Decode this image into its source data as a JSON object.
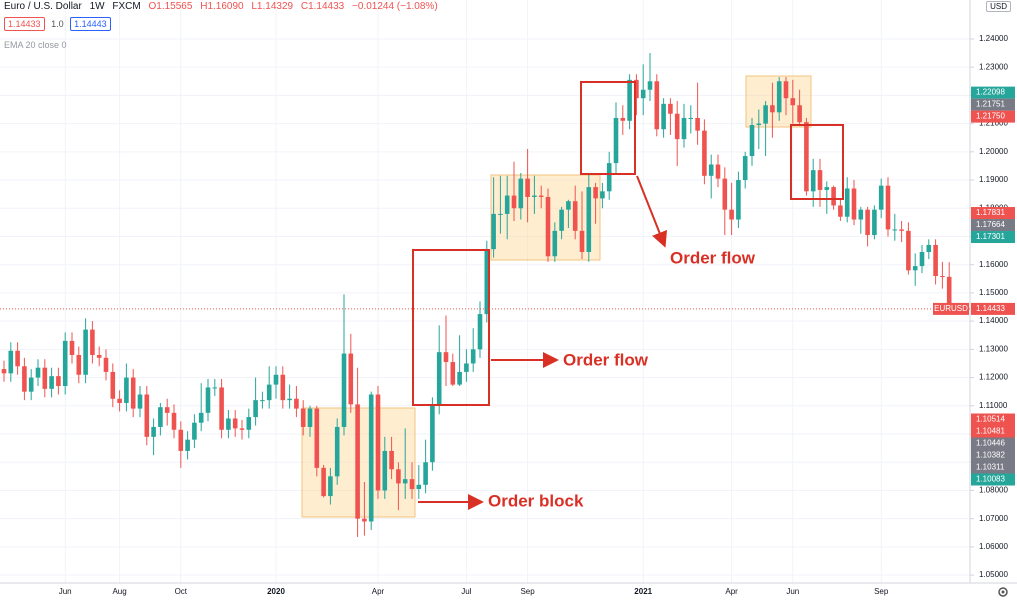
{
  "header": {
    "symbol": "Euro / U.S. Dollar",
    "interval": "1W",
    "exchange": "FXCM",
    "open": "O1.15565",
    "high": "H1.16090",
    "low": "L1.14329",
    "close": "C1.14433",
    "change": "−0.01244 (−1.08%)",
    "sell": "1.14433",
    "spread": "1.0",
    "buy": "1.14443",
    "indicator": "EMA 20 close 0",
    "currency": "USD"
  },
  "annotations": [
    "Order block",
    "Order flow",
    "Order flow"
  ],
  "chart_data": {
    "type": "candlestick",
    "up_color": "#26a69a",
    "down_color": "#ef5350",
    "grid": true,
    "ylim": [
      1.0472,
      1.2538
    ],
    "yticks": [
      {
        "value": 1.05,
        "label": "1.05000"
      },
      {
        "value": 1.06,
        "label": "1.06000"
      },
      {
        "value": 1.07,
        "label": "1.07000"
      },
      {
        "value": 1.08,
        "label": "1.08000"
      },
      {
        "value": 1.09,
        "label": "1.09000"
      },
      {
        "value": 1.1,
        "label": "1.10000"
      },
      {
        "value": 1.11,
        "label": "1.11000"
      },
      {
        "value": 1.12,
        "label": "1.12000"
      },
      {
        "value": 1.13,
        "label": "1.13000"
      },
      {
        "value": 1.14,
        "label": "1.14000"
      },
      {
        "value": 1.15,
        "label": "1.15000"
      },
      {
        "value": 1.16,
        "label": "1.16000"
      },
      {
        "value": 1.17,
        "label": "1.17000"
      },
      {
        "value": 1.18,
        "label": "1.18000"
      },
      {
        "value": 1.19,
        "label": "1.19000"
      },
      {
        "value": 1.2,
        "label": "1.20000"
      },
      {
        "value": 1.21,
        "label": "1.21000"
      },
      {
        "value": 1.22,
        "label": "1.22000"
      },
      {
        "value": 1.23,
        "label": "1.23000"
      },
      {
        "value": 1.24,
        "label": "1.24000"
      }
    ],
    "categories": [
      null,
      null,
      null,
      null,
      null,
      null,
      null,
      null,
      null,
      "Jun",
      null,
      null,
      null,
      null,
      null,
      null,
      null,
      "Aug",
      null,
      null,
      null,
      null,
      null,
      null,
      null,
      null,
      "Oct",
      null,
      null,
      null,
      null,
      null,
      null,
      null,
      null,
      null,
      null,
      null,
      null,
      null,
      "2020",
      null,
      null,
      null,
      null,
      null,
      null,
      null,
      null,
      null,
      null,
      null,
      null,
      null,
      null,
      "Apr",
      null,
      null,
      null,
      null,
      null,
      null,
      null,
      null,
      null,
      null,
      null,
      null,
      "Jul",
      null,
      null,
      null,
      null,
      null,
      null,
      null,
      null,
      "Sep",
      null,
      null,
      null,
      null,
      null,
      null,
      null,
      null,
      null,
      null,
      null,
      null,
      null,
      null,
      null,
      null,
      "2021",
      null,
      null,
      null,
      null,
      null,
      null,
      null,
      null,
      null,
      null,
      null,
      null,
      "Apr",
      null,
      null,
      null,
      null,
      null,
      null,
      null,
      null,
      "Jun",
      null,
      null,
      null,
      null,
      null,
      null,
      null,
      null,
      null,
      null,
      null,
      null,
      "Sep",
      null,
      null,
      null,
      null,
      null,
      null,
      null,
      null,
      null,
      null
    ],
    "open": [
      1.123,
      1.1215,
      1.1295,
      1.124,
      1.115,
      1.12,
      1.1235,
      1.116,
      1.1205,
      1.117,
      1.133,
      1.128,
      1.121,
      1.137,
      1.128,
      1.127,
      1.122,
      1.1125,
      1.111,
      1.12,
      1.109,
      1.114,
      1.099,
      1.1025,
      1.1095,
      1.1075,
      1.1015,
      1.094,
      1.098,
      1.104,
      1.1075,
      1.1165,
      1.1165,
      1.1015,
      1.1055,
      1.102,
      1.1015,
      1.106,
      1.112,
      1.112,
      1.1175,
      1.121,
      1.112,
      1.1125,
      1.109,
      1.1025,
      1.109,
      1.088,
      1.078,
      1.085,
      1.1025,
      1.1285,
      1.1105,
      1.07,
      1.069,
      1.114,
      1.08,
      1.094,
      1.0875,
      1.0825,
      1.084,
      1.0805,
      1.082,
      1.09,
      1.11,
      1.129,
      1.1255,
      1.1175,
      1.122,
      1.125,
      1.13,
      1.1425,
      1.1655,
      1.178,
      1.178,
      1.1845,
      1.18,
      1.1905,
      1.184,
      1.1845,
      1.184,
      1.163,
      1.172,
      1.1795,
      1.1825,
      1.172,
      1.1645,
      1.1875,
      1.1835,
      1.186,
      1.196,
      1.212,
      1.211,
      1.2255,
      1.219,
      1.222,
      1.225,
      1.208,
      1.217,
      1.2135,
      1.2045,
      1.212,
      1.212,
      1.2075,
      1.1915,
      1.1955,
      1.1905,
      1.1795,
      1.176,
      1.19,
      1.1985,
      1.2095,
      1.21,
      1.2165,
      1.214,
      1.225,
      1.219,
      1.2165,
      1.2105,
      1.186,
      1.1935,
      1.1865,
      1.1875,
      1.181,
      1.177,
      1.187,
      1.176,
      1.1795,
      1.1705,
      1.1795,
      1.188,
      1.1725,
      1.1725,
      1.172,
      1.158,
      1.1595,
      1.1645,
      1.167,
      1.156,
      1.1557
    ],
    "high": [
      1.126,
      1.1325,
      1.1325,
      1.127,
      1.123,
      1.1265,
      1.1265,
      1.1235,
      1.1235,
      1.136,
      1.136,
      1.131,
      1.141,
      1.14,
      1.131,
      1.13,
      1.125,
      1.1155,
      1.125,
      1.123,
      1.117,
      1.117,
      1.1055,
      1.111,
      1.1125,
      1.1105,
      1.1045,
      1.101,
      1.107,
      1.118,
      1.1195,
      1.1195,
      1.1195,
      1.1085,
      1.1085,
      1.105,
      1.109,
      1.12,
      1.115,
      1.124,
      1.124,
      1.124,
      1.1175,
      1.117,
      1.112,
      1.11,
      1.11,
      1.089,
      1.088,
      1.1055,
      1.1495,
      1.1355,
      1.1235,
      1.083,
      1.115,
      1.117,
      1.099,
      1.099,
      1.09,
      1.102,
      1.09,
      1.089,
      1.098,
      1.113,
      1.1385,
      1.142,
      1.1285,
      1.135,
      1.13,
      1.1375,
      1.147,
      1.1685,
      1.191,
      1.1915,
      1.1915,
      1.1965,
      1.1925,
      1.201,
      1.1915,
      1.188,
      1.187,
      1.175,
      1.1805,
      1.183,
      1.188,
      1.186,
      1.192,
      1.189,
      1.189,
      1.2,
      1.2175,
      1.2165,
      1.2275,
      1.2275,
      1.231,
      1.235,
      1.2275,
      1.219,
      1.219,
      1.218,
      1.217,
      1.2165,
      1.2245,
      1.2115,
      1.199,
      1.199,
      1.1945,
      1.189,
      1.193,
      1.2,
      1.212,
      1.215,
      1.218,
      1.2245,
      1.2265,
      1.2265,
      1.2255,
      1.222,
      1.212,
      1.1975,
      1.1975,
      1.1895,
      1.188,
      1.183,
      1.191,
      1.19,
      1.1805,
      1.1805,
      1.181,
      1.1905,
      1.191,
      1.178,
      1.1755,
      1.175,
      1.164,
      1.167,
      1.169,
      1.169,
      1.161,
      1.1609
    ],
    "low": [
      1.1185,
      1.1185,
      1.121,
      1.112,
      1.112,
      1.117,
      1.113,
      1.113,
      1.114,
      1.114,
      1.125,
      1.118,
      1.118,
      1.125,
      1.124,
      1.119,
      1.1095,
      1.108,
      1.108,
      1.106,
      1.106,
      1.096,
      1.0925,
      1.0995,
      1.103,
      1.0985,
      1.088,
      1.091,
      1.095,
      1.101,
      1.1045,
      1.1135,
      1.0985,
      1.0985,
      1.099,
      1.098,
      1.0985,
      1.103,
      1.109,
      1.109,
      1.1125,
      1.109,
      1.109,
      1.106,
      1.0995,
      1.099,
      1.085,
      1.0775,
      1.075,
      1.082,
      1.0995,
      1.1075,
      1.0635,
      1.064,
      1.066,
      1.077,
      1.077,
      1.084,
      1.073,
      1.077,
      1.077,
      1.077,
      1.079,
      1.087,
      1.107,
      1.117,
      1.117,
      1.117,
      1.1185,
      1.122,
      1.127,
      1.1395,
      1.1625,
      1.171,
      1.169,
      1.1755,
      1.176,
      1.175,
      1.178,
      1.18,
      1.161,
      1.161,
      1.169,
      1.173,
      1.169,
      1.162,
      1.161,
      1.1745,
      1.18,
      1.183,
      1.1925,
      1.206,
      1.208,
      1.213,
      1.213,
      1.218,
      1.2055,
      1.205,
      1.206,
      1.195,
      1.2015,
      1.2065,
      1.2025,
      1.1885,
      1.1835,
      1.1875,
      1.1705,
      1.1705,
      1.173,
      1.187,
      1.195,
      1.201,
      1.1985,
      1.205,
      1.211,
      1.213,
      1.21,
      1.2095,
      1.1845,
      1.1805,
      1.1805,
      1.178,
      1.1795,
      1.1755,
      1.175,
      1.174,
      1.171,
      1.1665,
      1.169,
      1.1765,
      1.17,
      1.1685,
      1.168,
      1.1565,
      1.1525,
      1.157,
      1.162,
      1.153,
      1.1515,
      1.14329
    ],
    "close": [
      1.1215,
      1.1295,
      1.124,
      1.115,
      1.12,
      1.1235,
      1.116,
      1.1205,
      1.117,
      1.133,
      1.128,
      1.121,
      1.137,
      1.128,
      1.127,
      1.122,
      1.1125,
      1.111,
      1.12,
      1.109,
      1.114,
      1.099,
      1.1025,
      1.1095,
      1.1075,
      1.1015,
      1.094,
      1.098,
      1.104,
      1.1075,
      1.1165,
      1.1165,
      1.1015,
      1.1055,
      1.102,
      1.1015,
      1.106,
      1.112,
      1.112,
      1.1175,
      1.121,
      1.112,
      1.1125,
      1.109,
      1.1025,
      1.109,
      1.088,
      1.078,
      1.085,
      1.1025,
      1.1285,
      1.1105,
      1.07,
      1.069,
      1.114,
      1.08,
      1.094,
      1.0875,
      1.0825,
      1.084,
      1.0805,
      1.082,
      1.09,
      1.11,
      1.129,
      1.1255,
      1.1175,
      1.122,
      1.125,
      1.13,
      1.1425,
      1.1655,
      1.178,
      1.178,
      1.1845,
      1.18,
      1.1905,
      1.184,
      1.1845,
      1.184,
      1.163,
      1.172,
      1.1795,
      1.1825,
      1.172,
      1.1645,
      1.1875,
      1.1835,
      1.186,
      1.196,
      1.212,
      1.211,
      1.2255,
      1.219,
      1.222,
      1.225,
      1.208,
      1.217,
      1.2135,
      1.2045,
      1.212,
      1.212,
      1.2075,
      1.1915,
      1.1955,
      1.1905,
      1.1795,
      1.176,
      1.19,
      1.1985,
      1.2095,
      1.21,
      1.2165,
      1.214,
      1.225,
      1.219,
      1.2165,
      1.2105,
      1.186,
      1.1935,
      1.1865,
      1.1875,
      1.181,
      1.177,
      1.187,
      1.176,
      1.1795,
      1.1705,
      1.1795,
      1.188,
      1.1725,
      1.1725,
      1.172,
      1.158,
      1.1595,
      1.1645,
      1.167,
      1.156,
      1.1557,
      1.14433
    ],
    "last_price": {
      "name": "EURUSD",
      "value": 1.14433,
      "label": "1.14433",
      "color": "#ef5350"
    },
    "price_tags": [
      [
        {
          "value": 1.22098,
          "label": "1.22098",
          "color": "#26a69a"
        },
        {
          "value": 1.21751,
          "label": "1.21751",
          "color": "#787b86"
        },
        {
          "value": 1.2175,
          "label": "1.21750",
          "color": "#ef5350"
        }
      ],
      [
        {
          "value": 1.17831,
          "label": "1.17831",
          "color": "#ef5350"
        },
        {
          "value": 1.17664,
          "label": "1.17664",
          "color": "#787b86"
        },
        {
          "value": 1.17301,
          "label": "1.17301",
          "color": "#26a69a"
        }
      ],
      [
        {
          "value": 1.10514,
          "label": "1.10514",
          "color": "#ef5350"
        },
        {
          "value": 1.10481,
          "label": "1.10481",
          "color": "#ef5350"
        },
        {
          "value": 1.10446,
          "label": "1.10446",
          "color": "#787b86"
        },
        {
          "value": 1.10382,
          "label": "1.10382",
          "color": "#787b86"
        },
        {
          "value": 1.10311,
          "label": "1.10311",
          "color": "#787b86"
        },
        {
          "value": 1.10083,
          "label": "1.10083",
          "color": "#26a69a"
        }
      ]
    ]
  }
}
